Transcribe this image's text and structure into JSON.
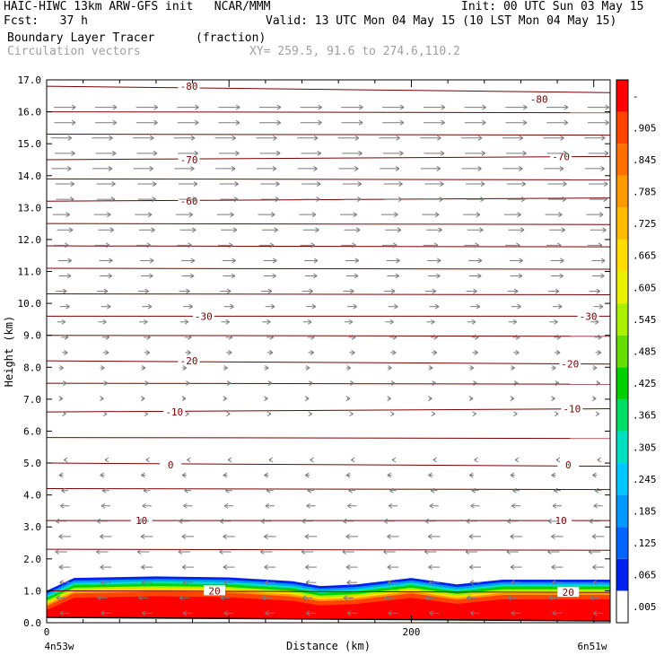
{
  "header": {
    "line1_left": "HAIC-HIWC 13km ARW-GFS init   NCAR/MMM",
    "line1_right": "Init: 00 UTC Sun 03 May 15",
    "line2_left": "Fcst:   37 h",
    "line2_right": "Valid: 13 UTC Mon 04 May 15 (10 LST Mon 04 May 15)",
    "line3_left": "Boundary Layer Tracer",
    "line3_units": "(fraction)",
    "line4_left": "Circulation vectors",
    "line4_xy": "XY= 259.5, 91.6 to 274.6,110.2"
  },
  "chart_data": {
    "type": "heatmap",
    "title": "Boundary Layer Tracer",
    "units": "(fraction)",
    "xlabel": "Distance (km)",
    "ylabel": "Height (km)",
    "xlim": [
      0,
      309
    ],
    "ylim": [
      0,
      17
    ],
    "x_ticks": [
      0,
      200
    ],
    "x_tick_labels": [
      "0",
      "200"
    ],
    "x_end_labels": [
      "4n53w",
      "6n51w"
    ],
    "y_ticks": [
      0,
      1,
      2,
      3,
      4,
      5,
      6,
      7,
      8,
      9,
      10,
      11,
      12,
      13,
      14,
      15,
      16,
      17
    ],
    "y_tick_labels": [
      "0.0",
      "1.0",
      "2.0",
      "3.0",
      "4.0",
      "5.0",
      "6.0",
      "7.0",
      "8.0",
      "9.0",
      "10.0",
      "11.0",
      "12.0",
      "13.0",
      "14.0",
      "15.0",
      "16.0",
      "17.0"
    ],
    "colorbar": {
      "labels": [
        ".005",
        ".065",
        ".125",
        ".185",
        ".245",
        ".305",
        ".365",
        ".425",
        ".485",
        ".545",
        ".605",
        ".665",
        ".725",
        ".785",
        ".845",
        ".905",
        "-"
      ],
      "colors": [
        "#ffffff",
        "#0022ee",
        "#0066ff",
        "#0099ff",
        "#00c6ff",
        "#00e0c0",
        "#00dd66",
        "#00d000",
        "#66dd00",
        "#aaee00",
        "#e8f000",
        "#ffdd00",
        "#ffbb00",
        "#ff9900",
        "#ff7000",
        "#ff4400",
        "#ff0000"
      ]
    },
    "tracer_layer": [
      {
        "x": 0,
        "top": 1.0
      },
      {
        "x": 15,
        "top": 1.4
      },
      {
        "x": 60,
        "top": 1.45
      },
      {
        "x": 100,
        "top": 1.42
      },
      {
        "x": 135,
        "top": 1.3
      },
      {
        "x": 150,
        "top": 1.15
      },
      {
        "x": 170,
        "top": 1.2
      },
      {
        "x": 200,
        "top": 1.4
      },
      {
        "x": 225,
        "top": 1.2
      },
      {
        "x": 250,
        "top": 1.35
      },
      {
        "x": 309,
        "top": 1.35
      }
    ],
    "temperature_contours": [
      {
        "label": "-80",
        "heights": [
          16.8,
          16.6
        ]
      },
      {
        "label": "-70",
        "heights": [
          14.5,
          14.6
        ]
      },
      {
        "label": "-60",
        "heights": [
          13.2,
          13.3
        ]
      },
      {
        "label": "-30",
        "heights": [
          9.6,
          9.6
        ]
      },
      {
        "label": "-20",
        "heights": [
          8.2,
          8.1
        ]
      },
      {
        "label": "-10",
        "heights": [
          6.6,
          6.7
        ]
      },
      {
        "label": "0",
        "heights": [
          5.0,
          4.9
        ]
      },
      {
        "label": "10",
        "heights": [
          3.2,
          3.2
        ]
      },
      {
        "label": "20",
        "heights": [
          1.0,
          0.95
        ]
      }
    ],
    "contour_labels": [
      {
        "text": "-80",
        "x": 78,
        "y": 16.8
      },
      {
        "text": "-80",
        "x": 270,
        "y": 16.4
      },
      {
        "text": "-70",
        "x": 78,
        "y": 14.5
      },
      {
        "text": "-70",
        "x": 282,
        "y": 14.6
      },
      {
        "text": "-60",
        "x": 78,
        "y": 13.2
      },
      {
        "text": "-30",
        "x": 86,
        "y": 9.6
      },
      {
        "text": "-30",
        "x": 297,
        "y": 9.6
      },
      {
        "text": "-20",
        "x": 78,
        "y": 8.2
      },
      {
        "text": "-20",
        "x": 287,
        "y": 8.1
      },
      {
        "text": "-10",
        "x": 70,
        "y": 6.6
      },
      {
        "text": "-10",
        "x": 288,
        "y": 6.7
      },
      {
        "text": "0",
        "x": 68,
        "y": 4.95
      },
      {
        "text": "0",
        "x": 286,
        "y": 4.95
      },
      {
        "text": "10",
        "x": 52,
        "y": 3.2
      },
      {
        "text": "10",
        "x": 282,
        "y": 3.2
      },
      {
        "text": "20",
        "x": 92,
        "y": 1.0
      },
      {
        "text": "20",
        "x": 286,
        "y": 0.95
      }
    ],
    "wind_vectors": {
      "description_rows": [
        {
          "height": 16.0,
          "u": 1.0
        },
        {
          "height": 14.0,
          "u": 0.9
        },
        {
          "height": 12.0,
          "u": 0.7
        },
        {
          "height": 10.0,
          "u": 0.45
        },
        {
          "height": 8.0,
          "u": 0.2
        },
        {
          "height": 6.0,
          "u": 0.05
        },
        {
          "height": 5.0,
          "u": -0.1
        },
        {
          "height": 4.0,
          "u": -0.35
        },
        {
          "height": 3.0,
          "u": -0.55
        },
        {
          "height": 2.0,
          "u": -0.55
        },
        {
          "height": 1.0,
          "u": -0.45
        }
      ]
    }
  }
}
